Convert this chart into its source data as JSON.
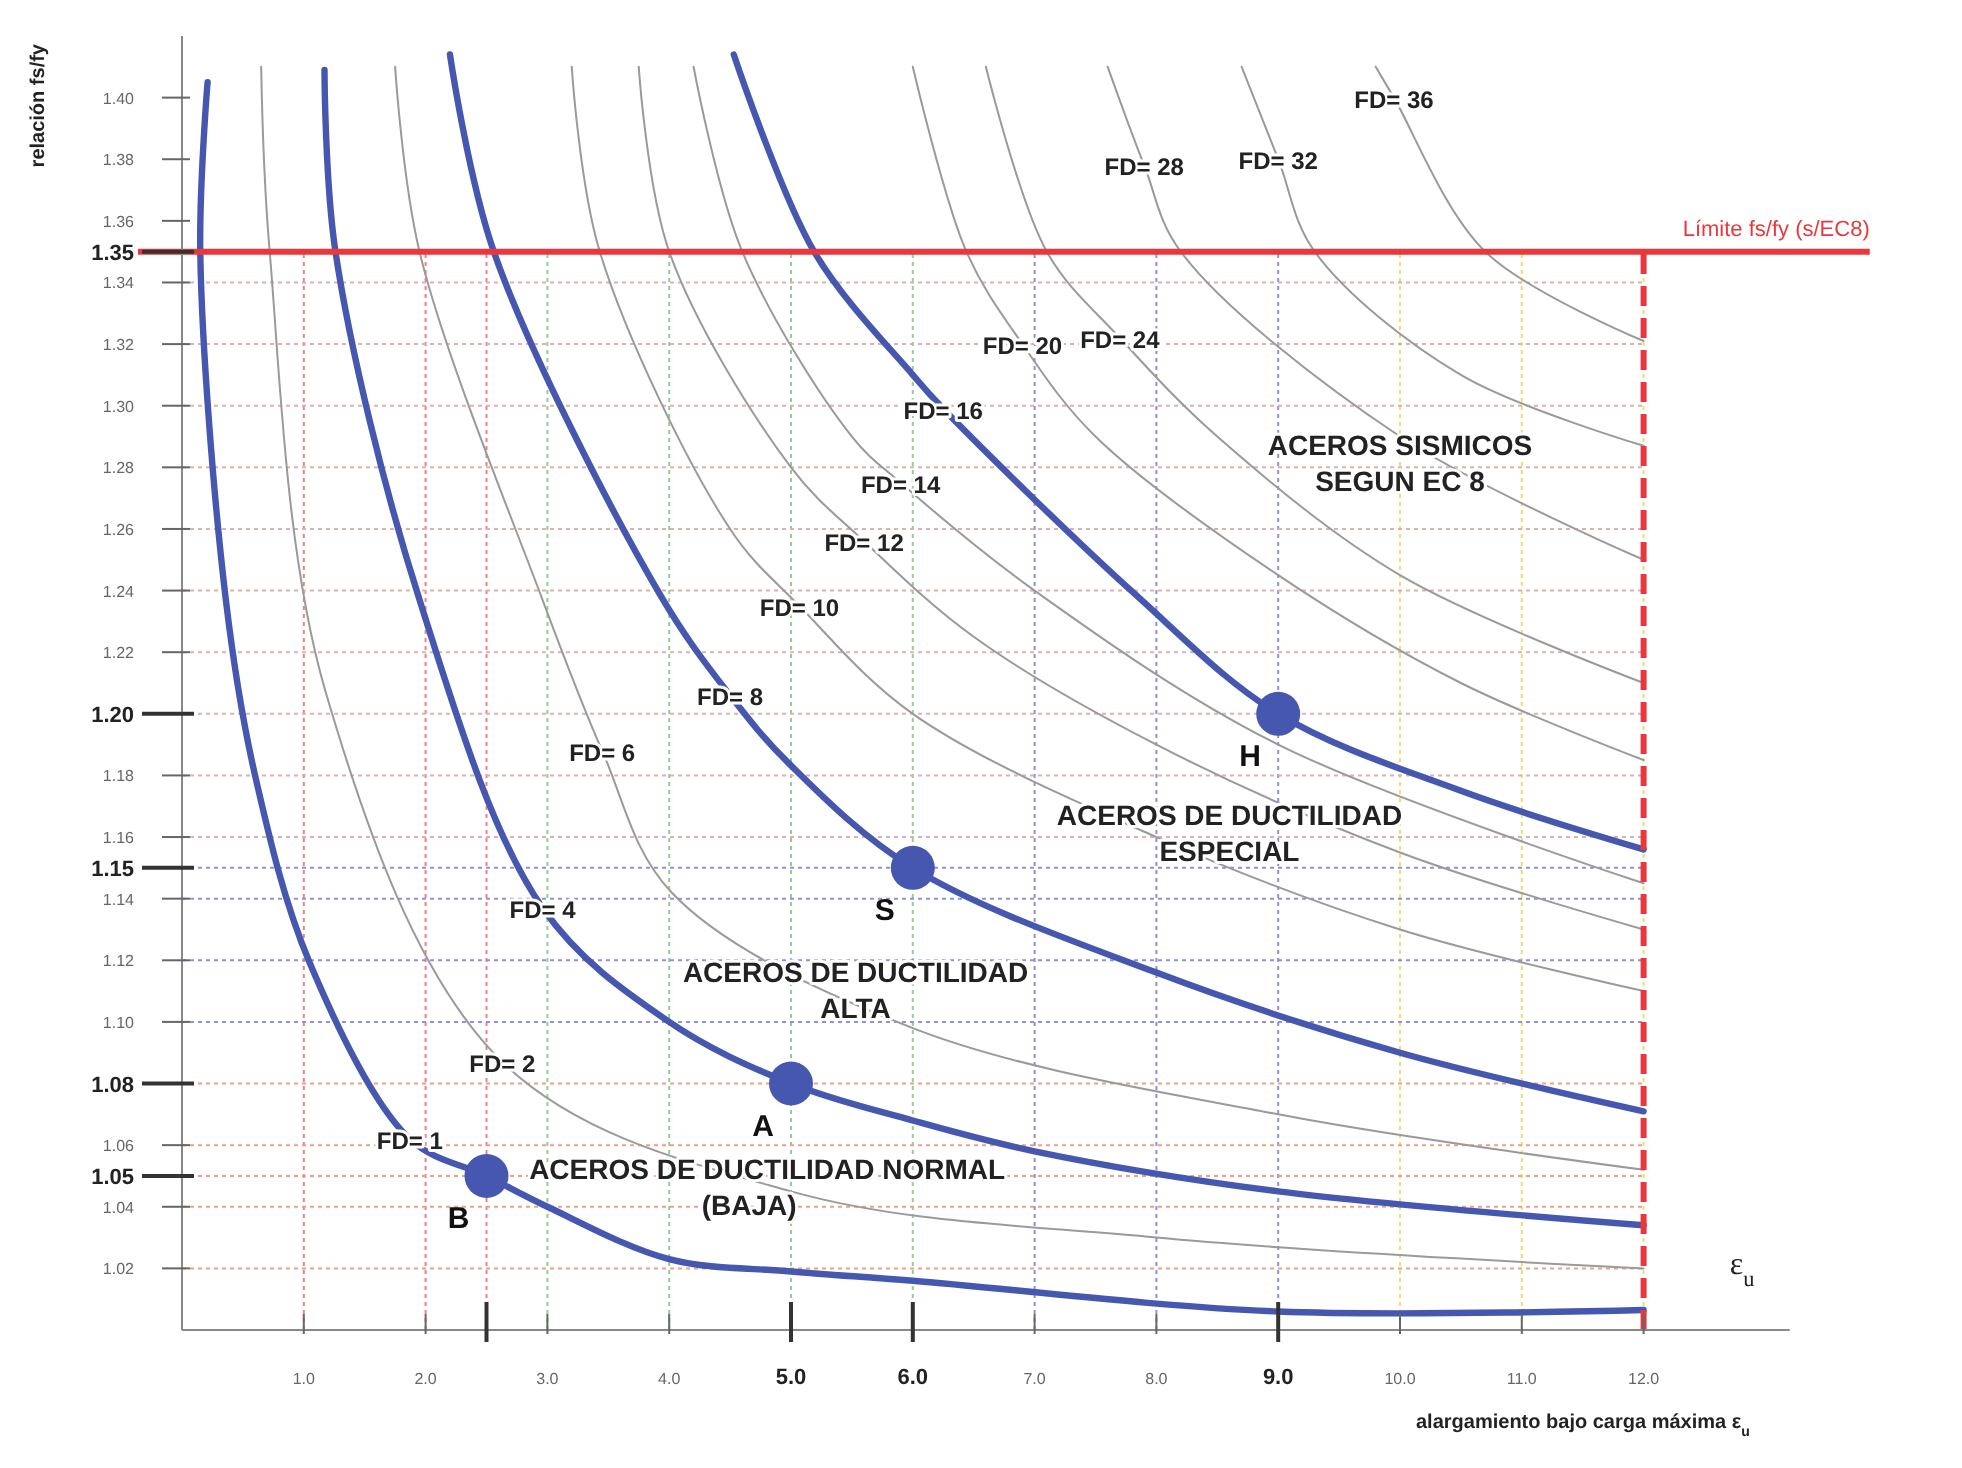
{
  "chart_data": {
    "type": "line",
    "xlabel": "alargamiento bajo carga máxima ε$_{u}$",
    "ylabel": "relación fs/fy",
    "xlim": [
      0,
      13.2
    ],
    "ylim": [
      1.0,
      1.42
    ],
    "xticks": [
      {
        "value": 1,
        "label": "1.0"
      },
      {
        "value": 2,
        "label": "2.0"
      },
      {
        "value": 2.5,
        "label": null
      },
      {
        "value": 3,
        "label": "3.0"
      },
      {
        "value": 4,
        "label": "4.0"
      },
      {
        "value": 5,
        "label": "5.0"
      },
      {
        "value": 6,
        "label": "6.0"
      },
      {
        "value": 7,
        "label": "7.0"
      },
      {
        "value": 8,
        "label": "8.0"
      },
      {
        "value": 9,
        "label": "9.0"
      },
      {
        "value": 10,
        "label": "10.0"
      },
      {
        "value": 11,
        "label": "11.0"
      },
      {
        "value": 12,
        "label": "12.0"
      }
    ],
    "yticks": [
      {
        "value": 1.02,
        "label": "1.02"
      },
      {
        "value": 1.04,
        "label": "1.04"
      },
      {
        "value": 1.05,
        "label": "1.05"
      },
      {
        "value": 1.06,
        "label": "1.06"
      },
      {
        "value": 1.08,
        "label": "1.08"
      },
      {
        "value": 1.1,
        "label": "1.10"
      },
      {
        "value": 1.12,
        "label": "1.12"
      },
      {
        "value": 1.14,
        "label": "1.14"
      },
      {
        "value": 1.15,
        "label": "1.15"
      },
      {
        "value": 1.16,
        "label": "1.16"
      },
      {
        "value": 1.18,
        "label": "1.18"
      },
      {
        "value": 1.2,
        "label": "1.20"
      },
      {
        "value": 1.22,
        "label": "1.22"
      },
      {
        "value": 1.24,
        "label": "1.24"
      },
      {
        "value": 1.26,
        "label": "1.26"
      },
      {
        "value": 1.28,
        "label": "1.28"
      },
      {
        "value": 1.3,
        "label": "1.30"
      },
      {
        "value": 1.32,
        "label": "1.32"
      },
      {
        "value": 1.34,
        "label": "1.34"
      },
      {
        "value": 1.35,
        "label": "1.35"
      },
      {
        "value": 1.36,
        "label": "1.36"
      },
      {
        "value": 1.38,
        "label": "1.38"
      },
      {
        "value": 1.4,
        "label": "1.40"
      }
    ],
    "grid": true,
    "series": [
      {
        "color": "#4657b0",
        "x": [
          0.21,
          0.15,
          0.36,
          0.6,
          1.05,
          1.87,
          2.5,
          3,
          4,
          5,
          6,
          9,
          12
        ],
        "values": [
          1.405,
          1.35,
          1.237,
          1.18,
          1.119,
          1.062,
          1.05,
          1.04,
          1.023,
          1.019,
          1.016,
          1.006,
          1.0065
        ]
      },
      {
        "color": "#9a9a9a",
        "x": [
          0.65,
          0.72,
          1.18,
          2.63,
          5,
          8,
          12
        ],
        "values": [
          1.41,
          1.35,
          1.207,
          1.087,
          1.045,
          1.03,
          1.02
        ]
      },
      {
        "color": "#4657b0",
        "x": [
          1.17,
          1.26,
          1.95,
          2.96,
          4,
          5,
          6,
          7,
          9,
          12
        ],
        "values": [
          1.409,
          1.35,
          1.237,
          1.137,
          1.1,
          1.08,
          1.068,
          1.058,
          1.045,
          1.034
        ]
      },
      {
        "color": "#9a9a9a",
        "x": [
          1.75,
          1.95,
          2.96,
          3.45,
          4.02,
          6,
          9,
          12
        ],
        "values": [
          1.41,
          1.35,
          1.237,
          1.188,
          1.142,
          1.098,
          1.07,
          1.052
        ]
      },
      {
        "color": "#4657b0",
        "x": [
          2.2,
          2.56,
          3.92,
          4.5,
          4.98,
          6,
          8,
          10,
          12
        ],
        "values": [
          1.414,
          1.35,
          1.239,
          1.206,
          1.184,
          1.15,
          1.116,
          1.09,
          1.071
        ]
      },
      {
        "color": "#9a9a9a",
        "x": [
          3.2,
          3.43,
          4.5,
          5.07,
          6,
          8,
          10,
          12
        ],
        "values": [
          1.41,
          1.35,
          1.26,
          1.235,
          1.2,
          1.16,
          1.13,
          1.11
        ]
      },
      {
        "color": "#9a9a9a",
        "x": [
          3.75,
          4,
          5,
          5.6,
          6.5,
          8,
          10,
          12
        ],
        "values": [
          1.41,
          1.35,
          1.28,
          1.256,
          1.225,
          1.19,
          1.155,
          1.13
        ]
      },
      {
        "color": "#9a9a9a",
        "x": [
          4.2,
          4.6,
          5.5,
          5.9,
          7,
          9,
          12
        ],
        "values": [
          1.41,
          1.35,
          1.29,
          1.275,
          1.24,
          1.19,
          1.145
        ]
      },
      {
        "color": "#4657b0",
        "x": [
          4.53,
          5.19,
          6,
          6.25,
          7.82,
          9,
          10.5,
          12
        ],
        "values": [
          1.414,
          1.35,
          1.31,
          1.299,
          1.239,
          1.2,
          1.175,
          1.156
        ]
      },
      {
        "color": "#9a9a9a",
        "x": [
          6.0,
          6.44,
          6.9,
          7.5,
          9,
          10.5,
          12
        ],
        "values": [
          1.41,
          1.35,
          1.32,
          1.29,
          1.245,
          1.21,
          1.185
        ]
      },
      {
        "color": "#9a9a9a",
        "x": [
          6.6,
          7.1,
          7.7,
          8.5,
          10,
          12
        ],
        "values": [
          1.41,
          1.35,
          1.322,
          1.29,
          1.245,
          1.21
        ]
      },
      {
        "color": "#9a9a9a",
        "x": [
          7.6,
          7.9,
          8.2,
          10,
          12
        ],
        "values": [
          1.41,
          1.378,
          1.35,
          1.29,
          1.25
        ]
      },
      {
        "color": "#9a9a9a",
        "x": [
          8.7,
          9.0,
          9.3,
          10.5,
          12
        ],
        "values": [
          1.41,
          1.38,
          1.35,
          1.31,
          1.287
        ]
      },
      {
        "color": "#9a9a9a",
        "x": [
          9.8,
          9.95,
          10.7,
          12
        ],
        "values": [
          1.41,
          1.4,
          1.35,
          1.321
        ]
      },
      {
        "type": "scatter",
        "color": "#4657b0",
        "marker": "circle",
        "x": [
          2.5,
          5,
          6,
          9
        ],
        "values": [
          1.05,
          1.08,
          1.15,
          1.2
        ],
        "value_labels": [
          "B",
          "A",
          "S",
          "H"
        ]
      }
    ],
    "ref_lines": [
      {
        "axis": "y",
        "value": 1.35,
        "label": "Límite fs/fy (s/EC8)",
        "color": "#e8383d",
        "line_style": "solid"
      },
      {
        "axis": "x",
        "value": 12,
        "label": null,
        "color": "#e8383d",
        "line_style": "dashed"
      }
    ],
    "annotations": [
      {
        "text": "FD= 1",
        "x": 1.87,
        "y": 1.062
      },
      {
        "text": "FD= 2",
        "x": 2.63,
        "y": 1.087
      },
      {
        "text": "FD= 4",
        "x": 2.96,
        "y": 1.137
      },
      {
        "text": "FD= 6",
        "x": 3.45,
        "y": 1.188
      },
      {
        "text": "FD= 8",
        "x": 4.5,
        "y": 1.206
      },
      {
        "text": "FD= 10",
        "x": 5.07,
        "y": 1.235
      },
      {
        "text": "FD= 12",
        "x": 5.6,
        "y": 1.256
      },
      {
        "text": "FD= 14",
        "x": 5.9,
        "y": 1.275
      },
      {
        "text": "FD= 16",
        "x": 6.25,
        "y": 1.299
      },
      {
        "text": "FD= 20",
        "x": 6.9,
        "y": 1.32
      },
      {
        "text": "FD= 24",
        "x": 7.7,
        "y": 1.322
      },
      {
        "text": "FD= 28",
        "x": 7.9,
        "y": 1.378
      },
      {
        "text": "FD= 32",
        "x": 9.0,
        "y": 1.38
      },
      {
        "text": "FD= 36",
        "x": 9.95,
        "y": 1.4
      },
      "ACEROS DE DUCTILIDAD NORMAL\n(BAJA)",
      "ACEROS DE DUCTILIDAD\nALTA",
      "ACEROS DE DUCTILIDAD\nESPECIAL",
      "ACEROS SISMICOS\nSEGUN EC 8",
      "ε$_{u}$"
    ]
  }
}
